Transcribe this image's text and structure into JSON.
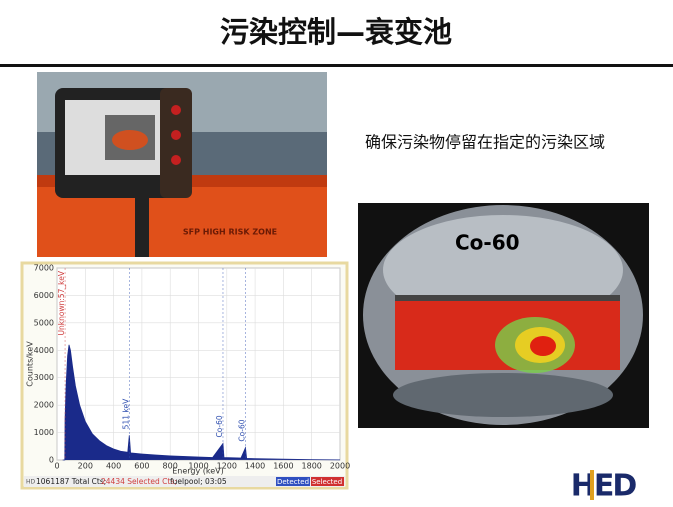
{
  "title": "污染控制—衰变池",
  "caption": "确保污染物停留在指定的污染区域",
  "photos": [
    {
      "label": "SFP HIGH RISK ZONE"
    },
    {
      "label": "Co-60"
    }
  ],
  "spectrum": {
    "type": "area",
    "x": [
      40,
      55,
      57,
      65,
      75,
      85,
      95,
      110,
      130,
      160,
      200,
      250,
      300,
      350,
      400,
      450,
      500,
      511,
      520,
      600,
      700,
      800,
      1000,
      1100,
      1173,
      1180,
      1300,
      1332,
      1340,
      1400,
      1600,
      1800,
      2000
    ],
    "values": [
      0,
      0,
      1500,
      2800,
      3800,
      4200,
      4000,
      3400,
      2700,
      2000,
      1400,
      950,
      700,
      520,
      400,
      320,
      280,
      900,
      260,
      220,
      180,
      150,
      110,
      90,
      600,
      90,
      70,
      450,
      60,
      50,
      30,
      15,
      5
    ],
    "color": "#1a2a8a",
    "xlabel": "Energy (keV)",
    "ylabel": "Counts/keV",
    "xlim": [
      0,
      2000
    ],
    "ylim": [
      0,
      7000
    ],
    "xticks": [
      0,
      200,
      400,
      600,
      800,
      1000,
      1200,
      1400,
      1600,
      1800,
      2000
    ],
    "yticks": [
      0,
      1000,
      2000,
      3000,
      4000,
      5000,
      6000,
      7000
    ],
    "grid": true,
    "annotations": [
      {
        "x": 57,
        "text": "Unknown:57_keV",
        "color": "#d04040"
      },
      {
        "x": 511,
        "text": "511 keV",
        "color": "#3050b0"
      },
      {
        "x": 1173,
        "text": "Co-60",
        "color": "#3050b0"
      },
      {
        "x": 1332,
        "text": "Co-60",
        "color": "#3050b0"
      }
    ],
    "status": {
      "prefix": "HD",
      "total": "1061187 Total Cts;",
      "selected": "24434 Selected Cts;",
      "source": "fuelpool; 03:05",
      "buttons": [
        "Detected",
        "Selected"
      ]
    }
  },
  "logo": "HED"
}
